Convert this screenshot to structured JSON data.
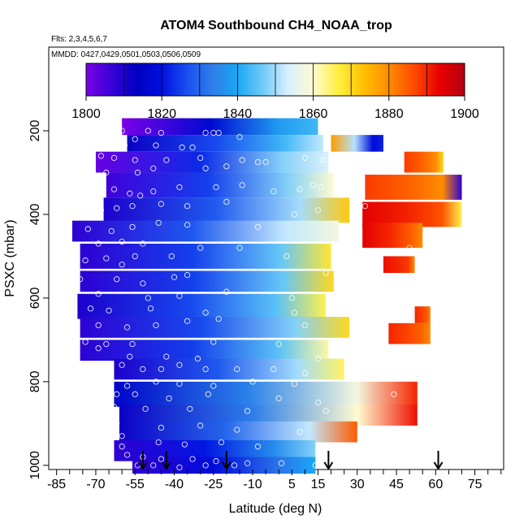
{
  "chart_data": {
    "type": "heatmap",
    "title": "ATOM4 Southbound CH4_NOAA_trop",
    "flights_label": "Flts: 2,3,4,5,6,7",
    "dates_label": "MMDD: 0427,0429,0501,0503,0506,0509",
    "xlabel": "Latitude (deg N)",
    "ylabel": "PSXC (mbar)",
    "xlim": [
      -88,
      86
    ],
    "ylim": [
      1010,
      0
    ],
    "x_ticks": [
      -85,
      -70,
      -55,
      -40,
      -25,
      -10,
      5,
      15,
      30,
      45,
      60,
      75
    ],
    "x_tick_labels": [
      "-85",
      "-70",
      "-55",
      "-40",
      "-25",
      "-10",
      "5",
      "15",
      "30",
      "45",
      "60",
      "75"
    ],
    "x_minor_ticks": [
      -80,
      -75,
      -65,
      -60,
      -50,
      -45,
      -35,
      -30,
      -20,
      -15,
      -5,
      0,
      10,
      20,
      25,
      35,
      40,
      50,
      55,
      65,
      70,
      80,
      85
    ],
    "y_ticks": [
      200,
      400,
      600,
      800,
      1000
    ],
    "y_tick_labels": [
      "200",
      "400",
      "600",
      "800",
      "1000"
    ],
    "colorbar": {
      "min": 1800,
      "max": 1900,
      "tick_values": [
        1800,
        1820,
        1840,
        1860,
        1880,
        1900
      ],
      "tick_labels": [
        "1800",
        "1820",
        "1840",
        "1860",
        "1880",
        "1900"
      ],
      "colors": [
        "#7a00e6",
        "#3a00d8",
        "#0000c0",
        "#0010e0",
        "#1a50f0",
        "#2f7de8",
        "#1aa8f5",
        "#6fcaf8",
        "#d8efff",
        "#fffbd0",
        "#ffef40",
        "#ffc000",
        "#ff8c00",
        "#ff4a00",
        "#e80000",
        "#b40010"
      ]
    },
    "arrow_latitudes": [
      -52,
      -43,
      -20,
      19,
      61
    ],
    "bands": [
      {
        "p": 190,
        "h": 40,
        "x0": -60,
        "x1": 15,
        "vw": 1800,
        "ve": 1838,
        "vs": 1843
      },
      {
        "p": 230,
        "h": 40,
        "x0": -58,
        "x1": 17,
        "vw": 1812,
        "ve": 1843,
        "vs": 1852
      },
      {
        "p": 230,
        "h": 40,
        "x0": 20,
        "x1": 40,
        "vw": 1878,
        "ve": 1818,
        "vs": 1822
      },
      {
        "p": 275,
        "h": 50,
        "x0": -70,
        "x1": 19,
        "vw": 1802,
        "ve": 1848,
        "vs": 1854
      },
      {
        "p": 275,
        "h": 50,
        "x0": 48,
        "x1": 63,
        "vw": 1888,
        "ve": 1880,
        "vs": 1870
      },
      {
        "p": 330,
        "h": 60,
        "x0": -66,
        "x1": 21,
        "vw": 1806,
        "ve": 1848,
        "vs": 1860
      },
      {
        "p": 335,
        "h": 60,
        "x0": 33,
        "x1": 70,
        "vw": 1888,
        "ve": 1880,
        "vs": 1808
      },
      {
        "p": 390,
        "h": 60,
        "x0": -67,
        "x1": 27,
        "vw": 1810,
        "ve": 1850,
        "vs": 1872
      },
      {
        "p": 400,
        "h": 60,
        "x0": 32,
        "x1": 70,
        "vw": 1894,
        "ve": 1886,
        "vs": 1866
      },
      {
        "p": 440,
        "h": 50,
        "x0": -79,
        "x1": 23,
        "vw": 1808,
        "ve": 1852,
        "vs": 1858
      },
      {
        "p": 450,
        "h": 60,
        "x0": 32,
        "x1": 55,
        "vw": 1894,
        "ve": 1885,
        "vs": 1880
      },
      {
        "p": 500,
        "h": 60,
        "x0": -76,
        "x1": 20,
        "vw": 1808,
        "ve": 1846,
        "vs": 1868
      },
      {
        "p": 520,
        "h": 40,
        "x0": 40,
        "x1": 52,
        "vw": 1892,
        "ve": 1888,
        "vs": 1880
      },
      {
        "p": 560,
        "h": 50,
        "x0": -76,
        "x1": 21,
        "vw": 1808,
        "ve": 1846,
        "vs": 1870
      },
      {
        "p": 620,
        "h": 60,
        "x0": -77,
        "x1": 18,
        "vw": 1810,
        "ve": 1845,
        "vs": 1866
      },
      {
        "p": 640,
        "h": 40,
        "x0": 52,
        "x1": 58,
        "vw": 1890,
        "ve": 1885,
        "vs": 1880
      },
      {
        "p": 670,
        "h": 50,
        "x0": -76,
        "x1": 27,
        "vw": 1808,
        "ve": 1848,
        "vs": 1870
      },
      {
        "p": 685,
        "h": 50,
        "x0": 42,
        "x1": 58,
        "vw": 1890,
        "ve": 1884,
        "vs": 1880
      },
      {
        "p": 725,
        "h": 50,
        "x0": -76,
        "x1": 19,
        "vw": 1808,
        "ve": 1845,
        "vs": 1862
      },
      {
        "p": 770,
        "h": 50,
        "x0": -63,
        "x1": 25,
        "vw": 1810,
        "ve": 1850,
        "vs": 1865
      },
      {
        "p": 830,
        "h": 60,
        "x0": -63,
        "x1": 53,
        "vw": 1815,
        "ve": 1858,
        "vs": 1890
      },
      {
        "p": 880,
        "h": 50,
        "x0": -61,
        "x1": 53,
        "vw": 1812,
        "ve": 1860,
        "vs": 1892
      },
      {
        "p": 920,
        "h": 50,
        "x0": -61,
        "x1": 30,
        "vw": 1812,
        "ve": 1852,
        "vs": 1885
      },
      {
        "p": 965,
        "h": 50,
        "x0": -63,
        "x1": 14,
        "vw": 1808,
        "ve": 1836,
        "vs": 1848
      },
      {
        "p": 1000,
        "h": 40,
        "x0": -56,
        "x1": 14,
        "vw": 1808,
        "ve": 1832,
        "vs": 1840
      }
    ],
    "points": [
      [
        -60,
        200
      ],
      [
        -50,
        200
      ],
      [
        -45,
        205
      ],
      [
        -28,
        205
      ],
      [
        -25,
        205
      ],
      [
        -23,
        205
      ],
      [
        -15,
        215
      ],
      [
        -55,
        220
      ],
      [
        -59,
        235
      ],
      [
        -47,
        235
      ],
      [
        -37,
        240
      ],
      [
        -33,
        240
      ],
      [
        -68,
        260
      ],
      [
        -63,
        265
      ],
      [
        -55,
        270
      ],
      [
        -43,
        270
      ],
      [
        -30,
        265
      ],
      [
        -14,
        270
      ],
      [
        -8,
        275
      ],
      [
        -66,
        300
      ],
      [
        -54,
        300
      ],
      [
        -48,
        290
      ],
      [
        -28,
        290
      ],
      [
        -20,
        285
      ],
      [
        -5,
        275
      ],
      [
        10,
        265
      ],
      [
        17,
        270
      ],
      [
        -63,
        340
      ],
      [
        -57,
        350
      ],
      [
        -53,
        355
      ],
      [
        -48,
        345
      ],
      [
        -38,
        335
      ],
      [
        -24,
        335
      ],
      [
        -14,
        330
      ],
      [
        -2,
        345
      ],
      [
        8,
        340
      ],
      [
        13,
        330
      ],
      [
        16,
        335
      ],
      [
        -68,
        390
      ],
      [
        -62,
        385
      ],
      [
        -56,
        380
      ],
      [
        -45,
        375
      ],
      [
        -35,
        380
      ],
      [
        -20,
        370
      ],
      [
        6,
        400
      ],
      [
        15,
        390
      ],
      [
        33,
        380
      ],
      [
        -82,
        430
      ],
      [
        -73,
        435
      ],
      [
        -64,
        440
      ],
      [
        -56,
        430
      ],
      [
        -46,
        420
      ],
      [
        -35,
        425
      ],
      [
        -8,
        430
      ],
      [
        -69,
        470
      ],
      [
        -60,
        465
      ],
      [
        -52,
        470
      ],
      [
        -30,
        480
      ],
      [
        -15,
        480
      ],
      [
        50,
        480
      ],
      [
        -74,
        510
      ],
      [
        -66,
        505
      ],
      [
        -60,
        520
      ],
      [
        -55,
        500
      ],
      [
        -41,
        500
      ],
      [
        3,
        500
      ],
      [
        -76,
        555
      ],
      [
        -62,
        555
      ],
      [
        -52,
        565
      ],
      [
        -40,
        550
      ],
      [
        -35,
        545
      ],
      [
        18,
        540
      ],
      [
        -69,
        590
      ],
      [
        -50,
        600
      ],
      [
        -38,
        595
      ],
      [
        -20,
        585
      ],
      [
        5,
        600
      ],
      [
        -80,
        620
      ],
      [
        -72,
        625
      ],
      [
        -65,
        630
      ],
      [
        -49,
        625
      ],
      [
        -28,
        635
      ],
      [
        6,
        635
      ],
      [
        -81,
        650
      ],
      [
        -69,
        665
      ],
      [
        -58,
        670
      ],
      [
        -47,
        665
      ],
      [
        -35,
        655
      ],
      [
        -23,
        650
      ],
      [
        10,
        665
      ],
      [
        -74,
        705
      ],
      [
        -66,
        710
      ],
      [
        -56,
        710
      ],
      [
        -25,
        705
      ],
      [
        0,
        710
      ],
      [
        -69,
        720
      ],
      [
        -57,
        740
      ],
      [
        -43,
        740
      ],
      [
        -31,
        745
      ],
      [
        15,
        745
      ],
      [
        -60,
        760
      ],
      [
        -52,
        770
      ],
      [
        -45,
        770
      ],
      [
        -38,
        760
      ],
      [
        -28,
        770
      ],
      [
        -16,
        770
      ],
      [
        -2,
        770
      ],
      [
        10,
        780
      ],
      [
        -65,
        800
      ],
      [
        -58,
        810
      ],
      [
        -47,
        800
      ],
      [
        -38,
        805
      ],
      [
        -25,
        810
      ],
      [
        -10,
        800
      ],
      [
        6,
        805
      ],
      [
        -62,
        830
      ],
      [
        -55,
        830
      ],
      [
        -42,
        840
      ],
      [
        -27,
        830
      ],
      [
        0,
        840
      ],
      [
        15,
        850
      ],
      [
        44,
        830
      ],
      [
        -63,
        860
      ],
      [
        -51,
        865
      ],
      [
        -34,
        865
      ],
      [
        -12,
        870
      ],
      [
        18,
        870
      ],
      [
        -62,
        900
      ],
      [
        -45,
        910
      ],
      [
        -30,
        905
      ],
      [
        -16,
        915
      ],
      [
        8,
        920
      ],
      [
        -60,
        930
      ],
      [
        -46,
        945
      ],
      [
        -36,
        950
      ],
      [
        -22,
        945
      ],
      [
        -8,
        955
      ],
      [
        18,
        955
      ],
      [
        -58,
        975
      ],
      [
        -52,
        980
      ],
      [
        -45,
        985
      ],
      [
        -33,
        985
      ],
      [
        -24,
        990
      ],
      [
        -12,
        995
      ],
      [
        1,
        995
      ],
      [
        14,
        1000
      ],
      [
        -60,
        955
      ],
      [
        -54,
        1000
      ],
      [
        -48,
        1000
      ],
      [
        -38,
        1005
      ],
      [
        -28,
        1000
      ],
      [
        -17,
        1000
      ]
    ]
  }
}
